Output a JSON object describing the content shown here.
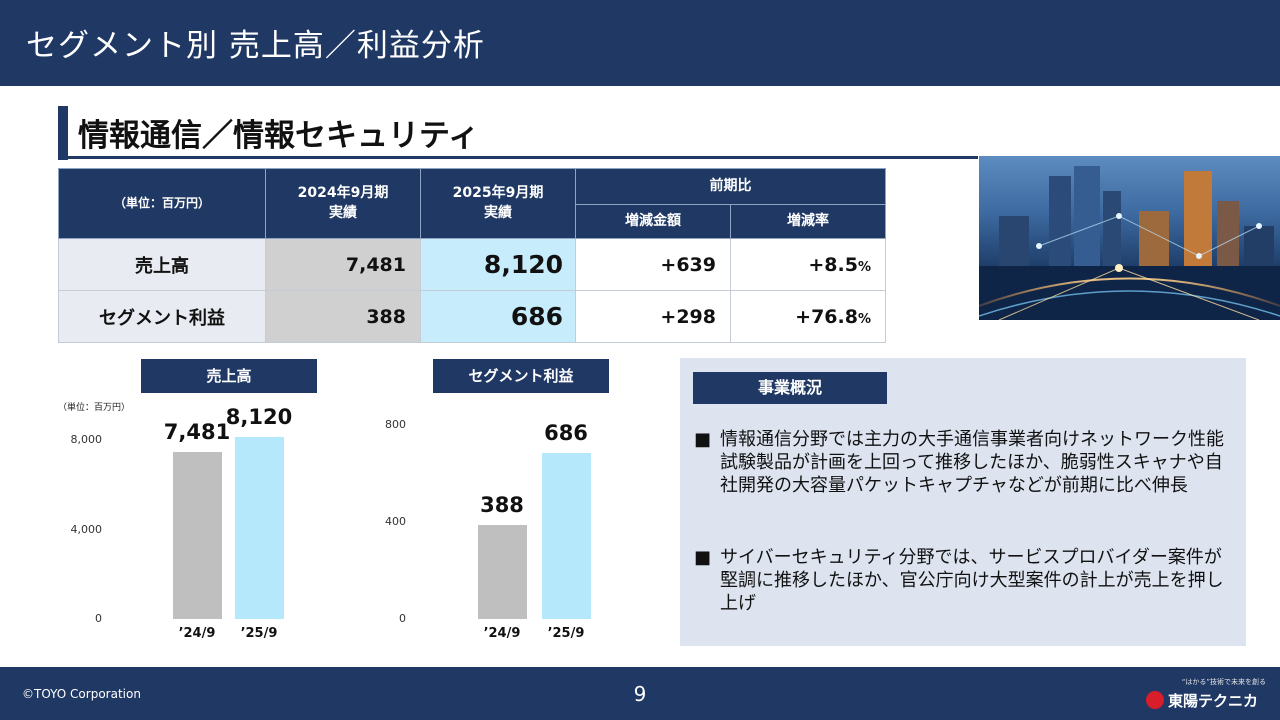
{
  "header": {
    "title": "セグメント別 売上高／利益分析"
  },
  "section": {
    "title": "情報通信／情報セキュリティ"
  },
  "table": {
    "unit": "（単位：百万円）",
    "col_prev": "2024年9月期\n実績",
    "col_cur": "2025年9月期\n実績",
    "col_yoy": "前期比",
    "col_diff": "増減金額",
    "col_rate": "増減率",
    "rows": [
      {
        "label": "売上高",
        "prev": "7,481",
        "cur": "8,120",
        "diff": "+639",
        "rate": "+8.5",
        "rate_unit": "%"
      },
      {
        "label": "セグメント利益",
        "prev": "388",
        "cur": "686",
        "diff": "+298",
        "rate": "+76.8",
        "rate_unit": "%"
      }
    ]
  },
  "chart_data": [
    {
      "type": "bar",
      "title": "売上高",
      "unit_label": "（単位：百万円）",
      "categories": [
        "’24/9",
        "’25/9"
      ],
      "values": [
        7481,
        8120
      ],
      "value_labels": [
        "7,481",
        "8,120"
      ],
      "yticks": [
        "8,000",
        "4,000",
        "0"
      ],
      "ylim": [
        0,
        8800
      ],
      "colors": [
        "#bfbfbf",
        "#b5e8fb"
      ]
    },
    {
      "type": "bar",
      "title": "セグメント利益",
      "categories": [
        "’24/9",
        "’25/9"
      ],
      "values": [
        388,
        686
      ],
      "value_labels": [
        "388",
        "686"
      ],
      "yticks": [
        "800",
        "400",
        "0"
      ],
      "ylim": [
        0,
        840
      ],
      "colors": [
        "#bfbfbf",
        "#b5e8fb"
      ]
    }
  ],
  "overview": {
    "title": "事業概況",
    "bullet_mark": "■",
    "bullets": [
      "情報通信分野では主力の大手通信事業者向けネットワーク性能試験製品が計画を上回って推移したほか、脆弱性スキャナや自社開発の大容量パケットキャプチャなどが前期に比べ伸長",
      "サイバーセキュリティ分野では、サービスプロバイダー案件が堅調に推移したほか、官公庁向け大型案件の計上が売上を押し上げ"
    ]
  },
  "footer": {
    "copyright": "©TOYO Corporation",
    "page": "9",
    "logo_tagline": "“はかる”技術で未来を創る",
    "logo_name": "東陽テクニカ"
  },
  "colors": {
    "navy": "#1f3864",
    "prev_bar": "#bfbfbf",
    "cur_bar": "#b5e8fb",
    "panel": "#dde4f0",
    "logo_red": "#d81e2a"
  },
  "icons": {
    "photo": "city-network-photo",
    "logo": "toyo-logo-mark"
  }
}
